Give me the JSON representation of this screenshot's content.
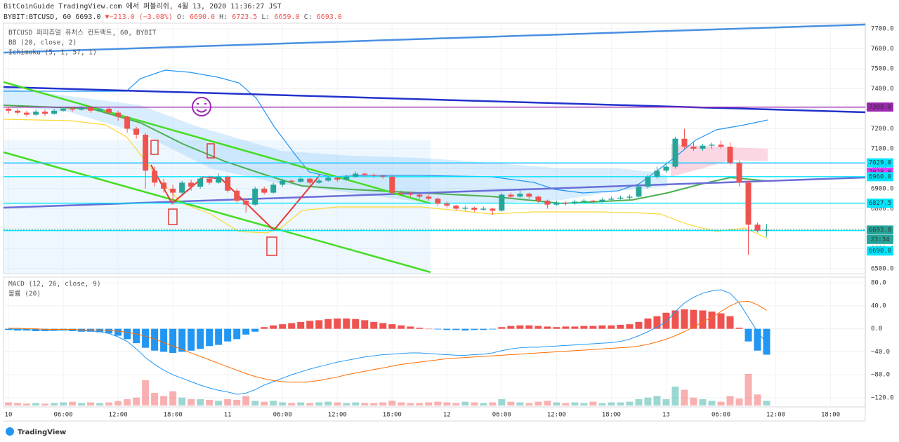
{
  "header": {
    "line1": "BitCoinGuide TradingView.com 에서 퍼블리쉬, 4월 13, 2020 11:36:27 JST",
    "symbol": "BYBIT:BTCUSD, 60",
    "last": "6693.0",
    "change": "▼−213.0 (−3.08%)",
    "fields": [
      {
        "k": "O:",
        "v": "6690.0"
      },
      {
        "k": "H:",
        "v": "6723.5"
      },
      {
        "k": "L:",
        "v": "6659.0"
      },
      {
        "k": "C:",
        "v": "6693.0"
      }
    ]
  },
  "footer": {
    "logo": "TradingView"
  },
  "chart_data": [
    {
      "type": "candlestick",
      "legend": [
        "BTCUSD 퍼피츄얼 퓨처스 컨트랙트, 60, BYBIT",
        "BB (20, close, 2)",
        "Ichimoku (5, 1, 57, 1)"
      ],
      "up_color": "#26a69a",
      "down_color": "#ef5350",
      "grid": true,
      "ylim": [
        6475,
        7728
      ],
      "yticks": [
        {
          "value": 7700,
          "label": "7700.0"
        },
        {
          "value": 7600,
          "label": "7600.0"
        },
        {
          "value": 7500,
          "label": "7500.0"
        },
        {
          "value": 7400,
          "label": "7400.0"
        },
        {
          "value": 7300,
          "label": "7300.0"
        },
        {
          "value": 7200,
          "label": "7200.0"
        },
        {
          "value": 7100,
          "label": "7100.0"
        },
        {
          "value": 7000,
          "label": "7000.0"
        },
        {
          "value": 6900,
          "label": "6900.0"
        },
        {
          "value": 6800,
          "label": "6800.0"
        },
        {
          "value": 6700,
          "label": "6700.0"
        },
        {
          "value": 6600,
          "label": "6600.0"
        },
        {
          "value": 6500,
          "label": "6500.0"
        }
      ],
      "xlim": [
        -0.54,
        93.8
      ],
      "xticks": [
        {
          "value": 0,
          "label": "10"
        },
        {
          "value": 6,
          "label": "06:00"
        },
        {
          "value": 12,
          "label": "12:00"
        },
        {
          "value": 18,
          "label": "18:00"
        },
        {
          "value": 24,
          "label": "11"
        },
        {
          "value": 30,
          "label": "06:00"
        },
        {
          "value": 36,
          "label": "12:00"
        },
        {
          "value": 42,
          "label": "18:00"
        },
        {
          "value": 48,
          "label": "12"
        },
        {
          "value": 54,
          "label": "06:00"
        },
        {
          "value": 60,
          "label": "12:00"
        },
        {
          "value": 66,
          "label": "18:00"
        },
        {
          "value": 72,
          "label": "13"
        },
        {
          "value": 78,
          "label": "06:00"
        },
        {
          "value": 84,
          "label": "12:00"
        },
        {
          "value": 90,
          "label": "18:00"
        }
      ],
      "ohlc": [
        [
          7300,
          7310,
          7275,
          7290
        ],
        [
          7290,
          7300,
          7270,
          7280
        ],
        [
          7280,
          7290,
          7260,
          7270
        ],
        [
          7270,
          7295,
          7265,
          7285
        ],
        [
          7285,
          7295,
          7265,
          7275
        ],
        [
          7275,
          7300,
          7270,
          7290
        ],
        [
          7290,
          7310,
          7285,
          7300
        ],
        [
          7300,
          7310,
          7285,
          7295
        ],
        [
          7295,
          7315,
          7290,
          7305
        ],
        [
          7305,
          7310,
          7280,
          7290
        ],
        [
          7290,
          7310,
          7285,
          7300
        ],
        [
          7300,
          7305,
          7270,
          7280
        ],
        [
          7280,
          7290,
          7240,
          7260
        ],
        [
          7260,
          7265,
          7180,
          7200
        ],
        [
          7200,
          7210,
          7150,
          7170
        ],
        [
          7170,
          7180,
          6900,
          6990
        ],
        [
          6990,
          7010,
          6910,
          6930
        ],
        [
          6930,
          6950,
          6880,
          6900
        ],
        [
          6900,
          6920,
          6820,
          6880
        ],
        [
          6880,
          6940,
          6870,
          6930
        ],
        [
          6930,
          6945,
          6890,
          6910
        ],
        [
          6910,
          6960,
          6900,
          6950
        ],
        [
          6950,
          6965,
          6920,
          6930
        ],
        [
          6930,
          6975,
          6925,
          6960
        ],
        [
          6960,
          6965,
          6880,
          6890
        ],
        [
          6890,
          6900,
          6830,
          6840
        ],
        [
          6840,
          6850,
          6780,
          6820
        ],
        [
          6820,
          6910,
          6815,
          6900
        ],
        [
          6900,
          6910,
          6870,
          6880
        ],
        [
          6880,
          6930,
          6875,
          6920
        ],
        [
          6920,
          6950,
          6910,
          6940
        ],
        [
          6940,
          6945,
          6925,
          6935
        ],
        [
          6935,
          6960,
          6930,
          6950
        ],
        [
          6950,
          6955,
          6920,
          6930
        ],
        [
          6930,
          6950,
          6925,
          6940
        ],
        [
          6940,
          6965,
          6935,
          6955
        ],
        [
          6955,
          6960,
          6935,
          6945
        ],
        [
          6945,
          6970,
          6940,
          6960
        ],
        [
          6960,
          6985,
          6955,
          6975
        ],
        [
          6975,
          6980,
          6960,
          6970
        ],
        [
          6970,
          6975,
          6955,
          6965
        ],
        [
          6965,
          6970,
          6950,
          6960
        ],
        [
          6960,
          6965,
          6870,
          6880
        ],
        [
          6880,
          6890,
          6865,
          6875
        ],
        [
          6875,
          6885,
          6860,
          6870
        ],
        [
          6870,
          6880,
          6850,
          6860
        ],
        [
          6860,
          6870,
          6840,
          6850
        ],
        [
          6850,
          6855,
          6815,
          6825
        ],
        [
          6825,
          6835,
          6805,
          6815
        ],
        [
          6815,
          6820,
          6790,
          6800
        ],
        [
          6800,
          6815,
          6790,
          6805
        ],
        [
          6805,
          6810,
          6785,
          6795
        ],
        [
          6795,
          6810,
          6790,
          6800
        ],
        [
          6800,
          6805,
          6770,
          6790
        ],
        [
          6790,
          6880,
          6785,
          6870
        ],
        [
          6870,
          6880,
          6850,
          6860
        ],
        [
          6860,
          6890,
          6855,
          6875
        ],
        [
          6875,
          6880,
          6850,
          6860
        ],
        [
          6860,
          6865,
          6830,
          6840
        ],
        [
          6840,
          6845,
          6800,
          6820
        ],
        [
          6820,
          6840,
          6815,
          6830
        ],
        [
          6830,
          6835,
          6815,
          6825
        ],
        [
          6825,
          6845,
          6820,
          6835
        ],
        [
          6835,
          6850,
          6830,
          6840
        ],
        [
          6840,
          6845,
          6825,
          6835
        ],
        [
          6835,
          6855,
          6830,
          6845
        ],
        [
          6845,
          6860,
          6840,
          6850
        ],
        [
          6850,
          6865,
          6845,
          6855
        ],
        [
          6855,
          6870,
          6845,
          6860
        ],
        [
          6860,
          6920,
          6855,
          6910
        ],
        [
          6910,
          6970,
          6900,
          6960
        ],
        [
          6960,
          7010,
          6950,
          6990
        ],
        [
          6990,
          7030,
          6980,
          7010
        ],
        [
          7010,
          7160,
          7000,
          7150
        ],
        [
          7150,
          7200,
          7100,
          7110
        ],
        [
          7110,
          7130,
          7090,
          7100
        ],
        [
          7100,
          7125,
          7090,
          7115
        ],
        [
          7115,
          7130,
          7100,
          7120
        ],
        [
          7120,
          7140,
          7100,
          7110
        ],
        [
          7110,
          7130,
          7020,
          7030
        ],
        [
          7030,
          7040,
          6910,
          6930
        ],
        [
          6930,
          6940,
          6570,
          6720
        ],
        [
          6720,
          6730,
          6680,
          6690
        ],
        [
          6690,
          6723.5,
          6659,
          6693
        ]
      ],
      "price_lines": [
        {
          "value": 7308,
          "label": "7308.0",
          "color": "#9c27b0",
          "text_color": "#ffffff"
        },
        {
          "value": 7028,
          "label": "7028.0",
          "color": "#e040fb",
          "text_color": "#ffffff"
        },
        {
          "value": 7029,
          "label": "7029.0",
          "color": "#00e5ff",
          "text_color": "#111111"
        },
        {
          "value": 6960,
          "label": "6960.0",
          "color": "#00e5ff",
          "text_color": "#111111"
        },
        {
          "value": 6827.5,
          "label": "6827.5",
          "color": "#00e5ff",
          "text_color": "#111111"
        },
        {
          "value": 6693,
          "label": "6693.0",
          "color": "#26a69a",
          "text_color": "#ffffff"
        },
        {
          "value": 6690,
          "label": "6690.0",
          "color": "#00e5ff",
          "text_color": "#111111"
        }
      ],
      "countdown": "23:34"
    },
    {
      "type": "macd",
      "legend": [
        "MACD (12, 26, close, 9)",
        "볼륨 (20)"
      ],
      "ylim": [
        -136,
        90
      ],
      "yticks": [
        {
          "value": 80,
          "label": "80.0"
        },
        {
          "value": 40,
          "label": "40.0"
        },
        {
          "value": 0,
          "label": "0.0"
        },
        {
          "value": -40,
          "label": "−40.0"
        },
        {
          "value": -80,
          "label": "−80.0"
        },
        {
          "value": -120,
          "label": "−120.0"
        }
      ],
      "histogram": {
        "pos_color": "#ef5350",
        "neg_color": "#2196f3",
        "values": [
          -2,
          -3,
          -3,
          -4,
          -4,
          -3,
          -3,
          -4,
          -5,
          -5,
          -6,
          -8,
          -12,
          -18,
          -25,
          -33,
          -38,
          -40,
          -42,
          -40,
          -38,
          -35,
          -30,
          -28,
          -22,
          -18,
          -10,
          -5,
          3,
          6,
          8,
          10,
          12,
          14,
          15,
          17,
          18,
          18,
          17,
          15,
          12,
          10,
          8,
          6,
          4,
          2,
          0,
          -1,
          -2,
          -2,
          -3,
          -2,
          -2,
          -1,
          3,
          5,
          6,
          6,
          5,
          4,
          3,
          4,
          4,
          5,
          5,
          6,
          6,
          7,
          8,
          12,
          18,
          22,
          28,
          32,
          34,
          33,
          32,
          30,
          27,
          22,
          2,
          -22,
          -38,
          -45
        ]
      },
      "series": [
        {
          "name": "MACD",
          "color": "#2196f3",
          "values": [
            0,
            -1,
            -2,
            -2,
            -3,
            -3,
            -2,
            -2,
            -3,
            -4,
            -5,
            -8,
            -14,
            -22,
            -35,
            -50,
            -62,
            -72,
            -80,
            -86,
            -92,
            -98,
            -103,
            -107,
            -110,
            -114,
            -112,
            -106,
            -98,
            -92,
            -86,
            -80,
            -75,
            -70,
            -66,
            -62,
            -58,
            -55,
            -52,
            -49,
            -47,
            -45,
            -44,
            -43,
            -42,
            -42,
            -43,
            -44,
            -45,
            -46,
            -46,
            -45,
            -44,
            -42,
            -38,
            -35,
            -33,
            -32,
            -32,
            -31,
            -30,
            -29,
            -28,
            -27,
            -26,
            -25,
            -24,
            -22,
            -18,
            -12,
            -5,
            3,
            12,
            30,
            45,
            55,
            62,
            66,
            68,
            62,
            45,
            20,
            -5,
            -25
          ]
        },
        {
          "name": "Signal",
          "color": "#ff6d00",
          "values": [
            1,
            1,
            0,
            0,
            -1,
            -1,
            -1,
            -1,
            -2,
            -2,
            -2,
            -3,
            -4,
            -6,
            -9,
            -13,
            -18,
            -24,
            -30,
            -36,
            -42,
            -48,
            -54,
            -60,
            -66,
            -72,
            -78,
            -83,
            -87,
            -90,
            -92,
            -93,
            -93,
            -92,
            -90,
            -87,
            -84,
            -80,
            -77,
            -74,
            -71,
            -68,
            -65,
            -62,
            -60,
            -58,
            -56,
            -54,
            -52,
            -51,
            -50,
            -49,
            -48,
            -47,
            -46,
            -45,
            -44,
            -43,
            -42,
            -41,
            -40,
            -39,
            -38,
            -37,
            -36,
            -35,
            -34,
            -33,
            -32,
            -30,
            -27,
            -23,
            -18,
            -12,
            -5,
            3,
            12,
            20,
            30,
            40,
            47,
            48,
            42,
            32
          ]
        }
      ],
      "volume": [
        10,
        8,
        6,
        8,
        6,
        8,
        10,
        12,
        8,
        10,
        8,
        10,
        14,
        20,
        25,
        80,
        40,
        30,
        45,
        25,
        20,
        20,
        18,
        15,
        20,
        18,
        30,
        15,
        12,
        15,
        10,
        8,
        10,
        8,
        10,
        12,
        10,
        8,
        10,
        8,
        8,
        10,
        15,
        10,
        8,
        8,
        10,
        12,
        10,
        8,
        12,
        10,
        8,
        10,
        20,
        12,
        10,
        8,
        12,
        15,
        10,
        8,
        10,
        8,
        12,
        8,
        10,
        10,
        12,
        20,
        25,
        30,
        20,
        60,
        50,
        25,
        20,
        15,
        12,
        30,
        22,
        100,
        35,
        15
      ]
    }
  ]
}
